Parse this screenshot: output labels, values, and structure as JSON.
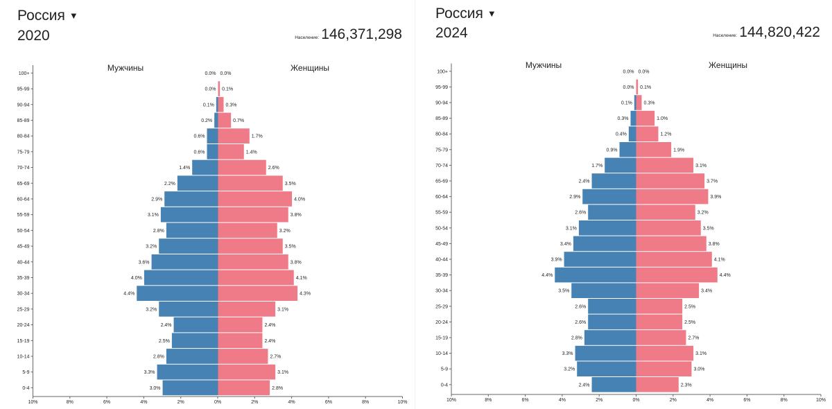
{
  "colors": {
    "male": "#4682b4",
    "female": "#f07b88",
    "axis": "#666666"
  },
  "chart_data": [
    {
      "type": "bar",
      "subtype": "population-pyramid",
      "country": "Россия",
      "year": "2020",
      "population_label": "Население:",
      "population_value": "146,371,298",
      "male_label": "Мужчины",
      "female_label": "Женщины",
      "age_groups": [
        "100+",
        "95-99",
        "90-94",
        "85-89",
        "80-84",
        "75-79",
        "70-74",
        "65-69",
        "60-64",
        "55-59",
        "50-54",
        "45-49",
        "40-44",
        "35-39",
        "30-34",
        "25-29",
        "20-24",
        "15-19",
        "10-14",
        "5-9",
        "0-4"
      ],
      "male": [
        0.0,
        0.0,
        0.1,
        0.2,
        0.6,
        0.6,
        1.4,
        2.2,
        2.9,
        3.1,
        2.8,
        3.2,
        3.6,
        4.0,
        4.4,
        3.2,
        2.4,
        2.5,
        2.8,
        3.3,
        3.0
      ],
      "female": [
        0.0,
        0.1,
        0.3,
        0.7,
        1.7,
        1.4,
        2.6,
        3.5,
        4.0,
        3.8,
        3.2,
        3.5,
        3.8,
        4.1,
        4.3,
        3.1,
        2.4,
        2.4,
        2.7,
        3.1,
        2.8
      ],
      "xlim": [
        -10,
        10
      ],
      "xticks": [
        "10%",
        "8%",
        "6%",
        "4%",
        "2%",
        "0%",
        "2%",
        "4%",
        "6%",
        "8%",
        "10%"
      ],
      "unit": "%"
    },
    {
      "type": "bar",
      "subtype": "population-pyramid",
      "country": "Россия",
      "year": "2024",
      "population_label": "Население:",
      "population_value": "144,820,422",
      "male_label": "Мужчины",
      "female_label": "Женщины",
      "age_groups": [
        "100+",
        "95-99",
        "90-94",
        "85-89",
        "80-84",
        "75-79",
        "70-74",
        "65-69",
        "60-64",
        "55-59",
        "50-54",
        "45-49",
        "40-44",
        "35-39",
        "30-34",
        "25-29",
        "20-24",
        "15-19",
        "10-14",
        "5-9",
        "0-4"
      ],
      "male": [
        0.0,
        0.0,
        0.1,
        0.3,
        0.4,
        0.9,
        1.7,
        2.4,
        2.9,
        2.6,
        3.1,
        3.4,
        3.9,
        4.4,
        3.5,
        2.6,
        2.6,
        2.8,
        3.3,
        3.2,
        2.4
      ],
      "female": [
        0.0,
        0.1,
        0.3,
        1.0,
        1.2,
        1.9,
        3.1,
        3.7,
        3.9,
        3.2,
        3.5,
        3.8,
        4.1,
        4.4,
        3.4,
        2.5,
        2.5,
        2.7,
        3.1,
        3.0,
        2.3
      ],
      "xlim": [
        -10,
        10
      ],
      "xticks": [
        "10%",
        "8%",
        "6%",
        "4%",
        "2%",
        "0%",
        "2%",
        "4%",
        "6%",
        "8%",
        "10%"
      ],
      "unit": "%"
    }
  ]
}
